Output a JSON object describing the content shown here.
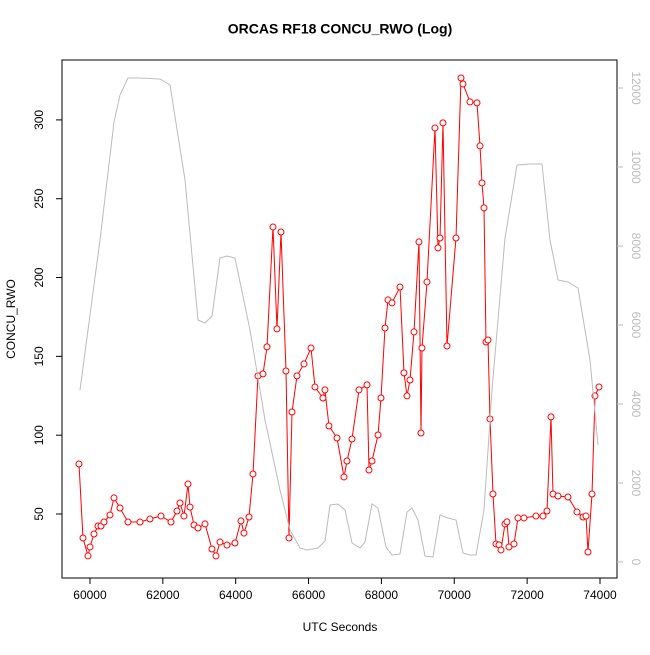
{
  "chart_data": {
    "type": "line",
    "title": "ORCAS RF18 CONCU_RWO (Log)",
    "x_label": "UTC Seconds",
    "y_label": "CONCU_RWO",
    "xlim": [
      59232,
      74467
    ],
    "xticks": [
      60000,
      62000,
      64000,
      66000,
      68000,
      70000,
      72000,
      74000
    ],
    "ylim": [
      9.4,
      338
    ],
    "yticks": [
      50,
      100,
      150,
      200,
      250,
      300
    ],
    "y2lim": [
      -405,
      12709
    ],
    "y2ticks": [
      0,
      2000,
      4000,
      6000,
      8000,
      10000,
      12000
    ],
    "y2_color": "#bbbbbb",
    "series": [
      {
        "color": "#ff0000",
        "marker": "circle",
        "x": [
          59698,
          59808,
          59945,
          60000,
          60110,
          60220,
          60302,
          60384,
          60549,
          60659,
          60824,
          61043,
          61373,
          61647,
          61949,
          62224,
          62388,
          62471,
          62580,
          62690,
          62745,
          62855,
          62965,
          63157,
          63349,
          63459,
          63569,
          63761,
          63980,
          64145,
          64227,
          64365,
          64474,
          64612,
          64749,
          64859,
          65023,
          65133,
          65243,
          65380,
          65463,
          65545,
          65682,
          65874,
          66066,
          66176,
          66395,
          66450,
          66560,
          66780,
          66972,
          67055,
          67192,
          67384,
          67604,
          67659,
          67741,
          67906,
          67988,
          68098,
          68180,
          68290,
          68510,
          68619,
          68702,
          68784,
          68894,
          69031,
          69086,
          69113,
          69251,
          69470,
          69553,
          69608,
          69690,
          69800,
          70047,
          70184,
          70239,
          70431,
          70623,
          70706,
          70761,
          70816,
          70871,
          70925,
          70980,
          71062,
          71145,
          71227,
          71282,
          71392,
          71447,
          71502,
          71639,
          71749,
          71913,
          72243,
          72435,
          72545,
          72655,
          72710,
          72847,
          73121,
          73368,
          73533,
          73615,
          73670,
          73780,
          73862,
          73972
        ],
        "values": [
          81.7,
          34.8,
          23.4,
          29.1,
          37.3,
          42.4,
          42.4,
          44.9,
          49.4,
          60.2,
          53.8,
          44.9,
          44.9,
          46.8,
          48.7,
          44.9,
          51.9,
          57.0,
          48.7,
          69.0,
          54.4,
          43.0,
          41.1,
          43.7,
          27.8,
          23.4,
          32.2,
          30.3,
          31.6,
          45.6,
          37.9,
          48.1,
          75.4,
          137.6,
          138.9,
          156.0,
          232.1,
          167.4,
          228.9,
          140.7,
          34.8,
          114.7,
          137.6,
          145.2,
          155.3,
          130.6,
          123.6,
          128.7,
          105.8,
          98.2,
          73.5,
          83.6,
          97.6,
          128.7,
          131.9,
          77.9,
          83.6,
          100.1,
          123.6,
          168.0,
          185.8,
          183.9,
          194.0,
          139.5,
          124.9,
          135.0,
          165.5,
          222.6,
          101.4,
          155.3,
          197.2,
          294.9,
          218.8,
          225.1,
          298.1,
          156.6,
          225.1,
          326.6,
          322.8,
          311.4,
          310.8,
          283.5,
          260.0,
          244.2,
          159.1,
          160.4,
          110.3,
          62.7,
          31.0,
          30.4,
          27.2,
          43.7,
          45.0,
          29.1,
          31.0,
          47.5,
          47.5,
          48.7,
          48.7,
          51.9,
          111.6,
          62.7,
          61.4,
          60.8,
          51.3,
          48.1,
          48.7,
          25.9,
          62.7,
          124.9,
          130.6
        ]
      },
      {
        "color": "#bbbbbb",
        "axis": "y2",
        "x": [
          59726,
          60275,
          60659,
          60824,
          61043,
          61373,
          61922,
          62196,
          62608,
          62965,
          63157,
          63349,
          63569,
          63761,
          63980,
          64392,
          64804,
          65216,
          65490,
          65765,
          65957,
          66259,
          66451,
          66588,
          66808,
          67000,
          67192,
          67411,
          67549,
          67741,
          67906,
          68125,
          68290,
          68510,
          68702,
          68839,
          69004,
          69196,
          69415,
          69608,
          69827,
          70047,
          70239,
          70431,
          70596,
          70816,
          71035,
          71392,
          71721,
          72078,
          72408,
          72627,
          72847,
          73121,
          73396,
          73726,
          73945
        ],
        "values": [
          4354,
          8152,
          11139,
          11823,
          12253,
          12253,
          12228,
          12076,
          9671,
          6127,
          6051,
          6228,
          7696,
          7747,
          7696,
          5873,
          3595,
          1823,
          810,
          354,
          304,
          354,
          532,
          1443,
          1468,
          1316,
          481,
          354,
          506,
          1468,
          1367,
          380,
          177,
          203,
          1266,
          1367,
          1063,
          152,
          127,
          1190,
          1114,
          1063,
          228,
          177,
          177,
          1316,
          4354,
          8203,
          10051,
          10076,
          10076,
          8152,
          7139,
          7089,
          6937,
          5114,
          2962
        ]
      }
    ]
  }
}
